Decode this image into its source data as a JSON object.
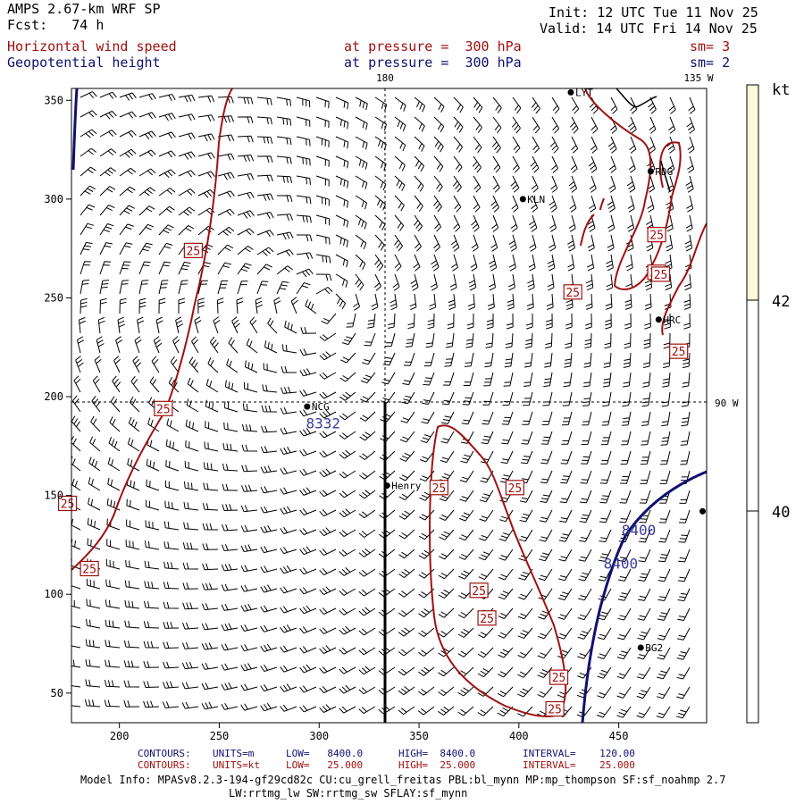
{
  "header": {
    "model": "AMPS 2.67-km WRF SP",
    "init_label": "Init:",
    "init_value": "12 UTC Tue 11 Nov 25",
    "fcst_label": "Fcst:",
    "fcst_value": "74 h",
    "valid_label": "Valid:",
    "valid_value": "14 UTC Fri 14 Nov 25",
    "fields": [
      {
        "name": "Horizontal wind speed",
        "level": "at pressure =  300 hPa",
        "sm": "sm= 3"
      },
      {
        "name": "Geopotential height",
        "level": "at pressure =  300 hPa",
        "sm": "sm= 2"
      }
    ]
  },
  "chart_data": {
    "type": "map",
    "xlim": [
      176,
      494
    ],
    "ylim": [
      35,
      356
    ],
    "x_ticks": [
      200,
      250,
      300,
      350,
      400,
      450
    ],
    "y_ticks": [
      50,
      100,
      150,
      200,
      250,
      300,
      350
    ],
    "grid_labels": {
      "lon_180": "180",
      "lon_135w": "135 W",
      "lon_90w": "90 W"
    },
    "stations": [
      {
        "name": "NCG",
        "x": 294,
        "y": 195
      },
      {
        "name": "Henry",
        "x": 334,
        "y": 155
      },
      {
        "name": "KLN",
        "x": 402,
        "y": 300
      },
      {
        "name": "RDG",
        "x": 466,
        "y": 314
      },
      {
        "name": "HRC",
        "x": 470,
        "y": 239
      },
      {
        "name": "BG2",
        "x": 461,
        "y": 73
      },
      {
        "name": "LYT",
        "x": 426,
        "y": 354
      },
      {
        "name": "",
        "x": 492,
        "y": 142
      }
    ],
    "height_labels": [
      {
        "text": "8332",
        "x": 302,
        "y": 184
      },
      {
        "text": "8400",
        "x": 460,
        "y": 130
      },
      {
        "text": "8400",
        "x": 451,
        "y": 113
      }
    ],
    "speed_labels": [
      {
        "text": "25",
        "x": 237,
        "y": 274
      },
      {
        "text": "25",
        "x": 222,
        "y": 194
      },
      {
        "text": "25",
        "x": 174,
        "y": 146
      },
      {
        "text": "25",
        "x": 185,
        "y": 113
      },
      {
        "text": "25",
        "x": 360,
        "y": 154
      },
      {
        "text": "25",
        "x": 398,
        "y": 154
      },
      {
        "text": "25",
        "x": 380,
        "y": 102
      },
      {
        "text": "25",
        "x": 384,
        "y": 88
      },
      {
        "text": "25",
        "x": 420,
        "y": 58
      },
      {
        "text": "25",
        "x": 418,
        "y": 42
      },
      {
        "text": "25",
        "x": 427,
        "y": 253
      },
      {
        "text": "25",
        "x": 469,
        "y": 263
      },
      {
        "text": "25",
        "x": 469,
        "y": 282
      },
      {
        "text": "25",
        "x": 480,
        "y": 223
      },
      {
        "text": "25",
        "x": 471,
        "y": 262
      }
    ],
    "colorbar": {
      "unit": "kt",
      "labels": [
        "42",
        "40"
      ],
      "fill": "#fff8d8"
    }
  },
  "footer": {
    "contours_height": {
      "title": "CONTOURS:",
      "units": "UNITS=m",
      "low": "LOW=   8400.0",
      "high": "HIGH=  8400.0",
      "interval": "INTERVAL=    120.00"
    },
    "contours_speed": {
      "title": "CONTOURS:",
      "units": "UNITS=kt",
      "low": "LOW=   25.000",
      "high": "HIGH=  25.000",
      "interval": "INTERVAL=    25.000"
    },
    "model_info_1": "Model Info: MPASv8.2.3-194-gf29cd82c CU:cu_grell_freitas PBL:bl_mynn MP:mp_thompson SF:sf_noahmp 2.7",
    "model_info_2": "LW:rrtmg_lw SW:rrtmg_sw SFLAY:sf_mynn"
  },
  "colors": {
    "speed": "#a01010",
    "height": "#101070",
    "barb": "#000000",
    "colorbar": "#fff8d8"
  }
}
